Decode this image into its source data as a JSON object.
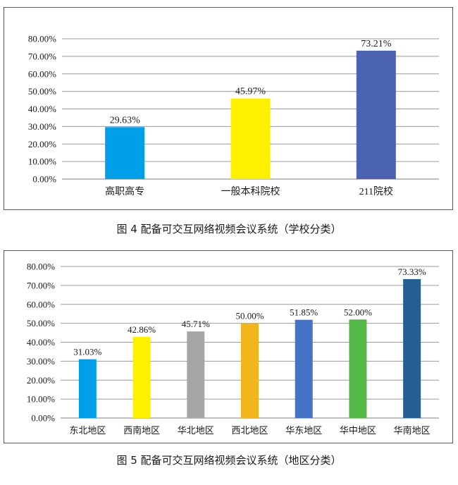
{
  "chart_data": [
    {
      "type": "bar",
      "categories": [
        "高职高专",
        "一般本科院校",
        "211院校"
      ],
      "values": [
        29.63,
        45.97,
        73.21
      ],
      "value_labels": [
        "29.63%",
        "45.97%",
        "73.21%"
      ],
      "colors": [
        "#00A0E8",
        "#FFF000",
        "#4B63B1"
      ],
      "ylim": [
        0,
        80
      ],
      "yticks": [
        "0.00%",
        "10.00%",
        "20.00%",
        "30.00%",
        "40.00%",
        "50.00%",
        "60.00%",
        "70.00%",
        "80.00%"
      ],
      "grid": true,
      "caption": "图 4  配备可交互网络视频会议系统（学校分类）"
    },
    {
      "type": "bar",
      "categories": [
        "东北地区",
        "西南地区",
        "华北地区",
        "西北地区",
        "华东地区",
        "华中地区",
        "华南地区"
      ],
      "values": [
        31.03,
        42.86,
        45.71,
        50.0,
        51.85,
        52.0,
        73.33
      ],
      "value_labels": [
        "31.03%",
        "42.86%",
        "45.71%",
        "50.00%",
        "51.85%",
        "52.00%",
        "73.33%"
      ],
      "colors": [
        "#00A0E8",
        "#FFF000",
        "#A6A6A6",
        "#F2B51D",
        "#4472C4",
        "#54B847",
        "#255E91"
      ],
      "ylim": [
        0,
        80
      ],
      "yticks": [
        "0.00%",
        "10.00%",
        "20.00%",
        "30.00%",
        "40.00%",
        "50.00%",
        "60.00%",
        "70.00%",
        "80.00%"
      ],
      "grid": true,
      "caption": "图 5  配备可交互网络视频会议系统（地区分类）"
    }
  ]
}
